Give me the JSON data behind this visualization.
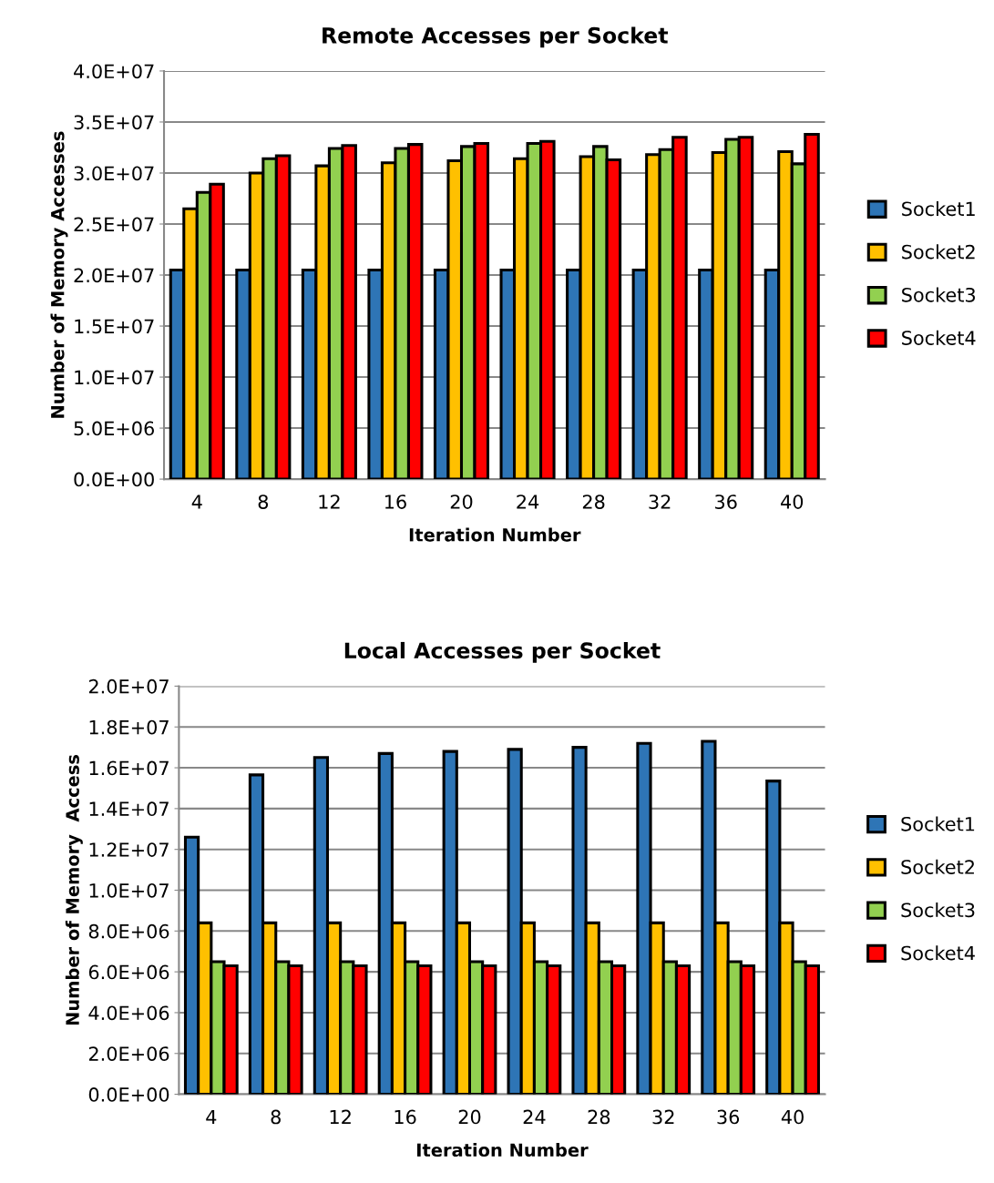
{
  "chart_data": [
    {
      "type": "bar",
      "title": "Remote Accesses per Socket",
      "xlabel": "Iteration Number",
      "ylabel": "Number of Memory Accesses",
      "categories": [
        "4",
        "8",
        "12",
        "16",
        "20",
        "24",
        "28",
        "32",
        "36",
        "40"
      ],
      "series": [
        {
          "name": "Socket1",
          "color": "#2e75b6",
          "values": [
            20500000,
            20500000,
            20500000,
            20500000,
            20500000,
            20500000,
            20500000,
            20500000,
            20500000,
            20500000
          ]
        },
        {
          "name": "Socket2",
          "color": "#ffc000",
          "values": [
            26500000,
            30000000,
            30700000,
            31000000,
            31200000,
            31400000,
            31600000,
            31800000,
            32000000,
            32100000
          ]
        },
        {
          "name": "Socket3",
          "color": "#92d050",
          "values": [
            28100000,
            31400000,
            32400000,
            32400000,
            32600000,
            32900000,
            32600000,
            32300000,
            33300000,
            30900000
          ]
        },
        {
          "name": "Socket4",
          "color": "#ff0000",
          "values": [
            28900000,
            31700000,
            32700000,
            32800000,
            32900000,
            33100000,
            31300000,
            33500000,
            33500000,
            33800000
          ]
        }
      ],
      "ylim": [
        0,
        40000000
      ],
      "yticks": [
        {
          "value": 0,
          "label": "0.0E+00"
        },
        {
          "value": 5000000,
          "label": "5.0E+06"
        },
        {
          "value": 10000000,
          "label": "1.0E+07"
        },
        {
          "value": 15000000,
          "label": "1.5E+07"
        },
        {
          "value": 20000000,
          "label": "2.0E+07"
        },
        {
          "value": 25000000,
          "label": "2.5E+07"
        },
        {
          "value": 30000000,
          "label": "3.0E+07"
        },
        {
          "value": 35000000,
          "label": "3.5E+07"
        },
        {
          "value": 40000000,
          "label": "4.0E+07"
        }
      ],
      "grid": "y",
      "legend": "right"
    },
    {
      "type": "bar",
      "title": "Local Accesses per Socket",
      "xlabel": "Iteration Number",
      "ylabel": "Number of Memory  Access",
      "categories": [
        "4",
        "8",
        "12",
        "16",
        "20",
        "24",
        "28",
        "32",
        "36",
        "40"
      ],
      "series": [
        {
          "name": "Socket1",
          "color": "#2e75b6",
          "values": [
            12600000,
            15650000,
            16500000,
            16700000,
            16800000,
            16900000,
            17000000,
            17200000,
            17300000,
            15350000
          ]
        },
        {
          "name": "Socket2",
          "color": "#ffc000",
          "values": [
            8400000,
            8400000,
            8400000,
            8400000,
            8400000,
            8400000,
            8400000,
            8400000,
            8400000,
            8400000
          ]
        },
        {
          "name": "Socket3",
          "color": "#92d050",
          "values": [
            6500000,
            6500000,
            6500000,
            6500000,
            6500000,
            6500000,
            6500000,
            6500000,
            6500000,
            6500000
          ]
        },
        {
          "name": "Socket4",
          "color": "#ff0000",
          "values": [
            6300000,
            6300000,
            6300000,
            6300000,
            6300000,
            6300000,
            6300000,
            6300000,
            6300000,
            6300000
          ]
        }
      ],
      "ylim": [
        0,
        20000000
      ],
      "yticks": [
        {
          "value": 0,
          "label": "0.0E+00"
        },
        {
          "value": 2000000,
          "label": "2.0E+06"
        },
        {
          "value": 4000000,
          "label": "4.0E+06"
        },
        {
          "value": 6000000,
          "label": "6.0E+06"
        },
        {
          "value": 8000000,
          "label": "8.0E+06"
        },
        {
          "value": 10000000,
          "label": "1.0E+07"
        },
        {
          "value": 12000000,
          "label": "1.2E+07"
        },
        {
          "value": 14000000,
          "label": "1.4E+07"
        },
        {
          "value": 16000000,
          "label": "1.6E+07"
        },
        {
          "value": 18000000,
          "label": "1.8E+07"
        },
        {
          "value": 20000000,
          "label": "2.0E+07"
        }
      ],
      "grid": "y",
      "legend": "right"
    }
  ]
}
